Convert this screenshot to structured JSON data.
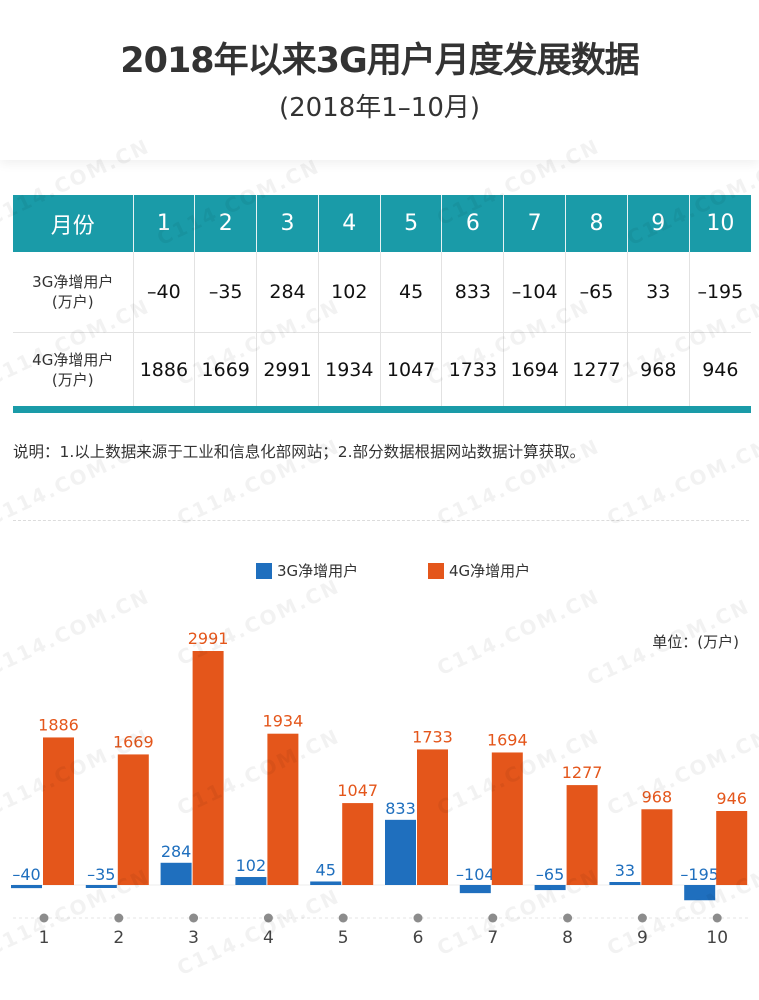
{
  "header": {
    "title": "2018年以来3G用户月度发展数据",
    "subtitle": "(2018年1–10月)"
  },
  "table": {
    "header_label": "月份",
    "months": [
      "1",
      "2",
      "3",
      "4",
      "5",
      "6",
      "7",
      "8",
      "9",
      "10"
    ],
    "row_3g": {
      "label_line1": "3G净增用户",
      "label_line2": "(万户)",
      "values": [
        "–40",
        "–35",
        "284",
        "102",
        "45",
        "833",
        "–104",
        "–65",
        "33",
        "–195"
      ]
    },
    "row_4g": {
      "label_line1": "4G净增用户",
      "label_line2": "(万户)",
      "values": [
        "1886",
        "1669",
        "2991",
        "1934",
        "1047",
        "1733",
        "1694",
        "1277",
        "968",
        "946"
      ]
    },
    "highlight_color": "#e4561b"
  },
  "note": "说明：1.以上数据来源于工业和信息化部网站；2.部分数据根据网站数据计算获取。",
  "watermark": "C114.COM.CN",
  "colors": {
    "teal": "#1a9ba8",
    "blue": "#1f6fbe",
    "orange": "#e4561b"
  },
  "chart_data": {
    "type": "bar",
    "categories": [
      "1",
      "2",
      "3",
      "4",
      "5",
      "6",
      "7",
      "8",
      "9",
      "10"
    ],
    "series": [
      {
        "name": "3G净增用户",
        "color": "#1f6fbe",
        "values": [
          -40,
          -35,
          284,
          102,
          45,
          833,
          -104,
          -65,
          33,
          -195
        ],
        "labels": [
          "–40",
          "–35",
          "284",
          "102",
          "45",
          "833",
          "–104",
          "–65",
          "33",
          "–195"
        ]
      },
      {
        "name": "4G净增用户",
        "color": "#e4561b",
        "values": [
          1886,
          1669,
          2991,
          1934,
          1047,
          1733,
          1694,
          1277,
          968,
          946
        ],
        "labels": [
          "1886",
          "1669",
          "2991",
          "1934",
          "1047",
          "1733",
          "1694",
          "1277",
          "968",
          "946"
        ]
      }
    ],
    "unit_label": "单位：(万户)",
    "legend_position": "top-center",
    "grid": false
  }
}
